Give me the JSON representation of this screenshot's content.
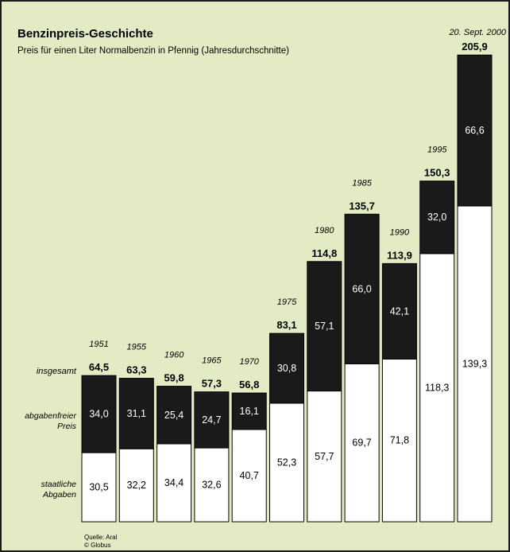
{
  "header": {
    "title": "Benzinpreis-Geschichte",
    "subtitle": "Preis für einen Liter Normalbenzin in Pfennig (Jahresdurchschnitte)",
    "date_note": "20. Sept. 2000"
  },
  "row_labels": {
    "total": "insgesamt",
    "free_line1": "abgabenfreier",
    "free_line2": "Preis",
    "tax_line1": "staatliche",
    "tax_line2": "Abgaben"
  },
  "source": {
    "line1": "Quelle: Aral",
    "line2": "© Globus"
  },
  "colors": {
    "background": "#e3ebc4",
    "dark_segment": "#1a1a1a",
    "light_segment": "#ffffff"
  },
  "chart_data": {
    "type": "bar",
    "stacked": true,
    "categories": [
      "1951",
      "1955",
      "1960",
      "1965",
      "1970",
      "1975",
      "1980",
      "1985",
      "1990",
      "1995",
      "20. Sept. 2000"
    ],
    "series": [
      {
        "name": "staatliche Abgaben",
        "values": [
          30.5,
          32.2,
          34.4,
          32.6,
          40.7,
          52.3,
          57.7,
          69.7,
          71.8,
          118.3,
          139.3
        ],
        "labels": [
          "30,5",
          "32,2",
          "34,4",
          "32,6",
          "40,7",
          "52,3",
          "57,7",
          "69,7",
          "71,8",
          "118,3",
          "139,3"
        ]
      },
      {
        "name": "abgabenfreier Preis",
        "values": [
          34.0,
          31.1,
          25.4,
          24.7,
          16.1,
          30.8,
          57.1,
          66.0,
          42.1,
          32.0,
          66.6
        ],
        "labels": [
          "34,0",
          "31,1",
          "25,4",
          "24,7",
          "16,1",
          "30,8",
          "57,1",
          "66,0",
          "42,1",
          "32,0",
          "66,6"
        ]
      }
    ],
    "totals": [
      64.5,
      63.3,
      59.8,
      57.3,
      56.8,
      83.1,
      114.8,
      135.7,
      113.9,
      150.3,
      205.9
    ],
    "total_labels": [
      "64,5",
      "63,3",
      "59,8",
      "57,3",
      "56,8",
      "83,1",
      "114,8",
      "135,7",
      "113,9",
      "150,3",
      "205,9"
    ],
    "year_labels": [
      "1951",
      "1955",
      "1960",
      "1965",
      "1970",
      "1975",
      "1980",
      "1985",
      "1990",
      "1995",
      ""
    ],
    "ylim": [
      0,
      210
    ]
  }
}
